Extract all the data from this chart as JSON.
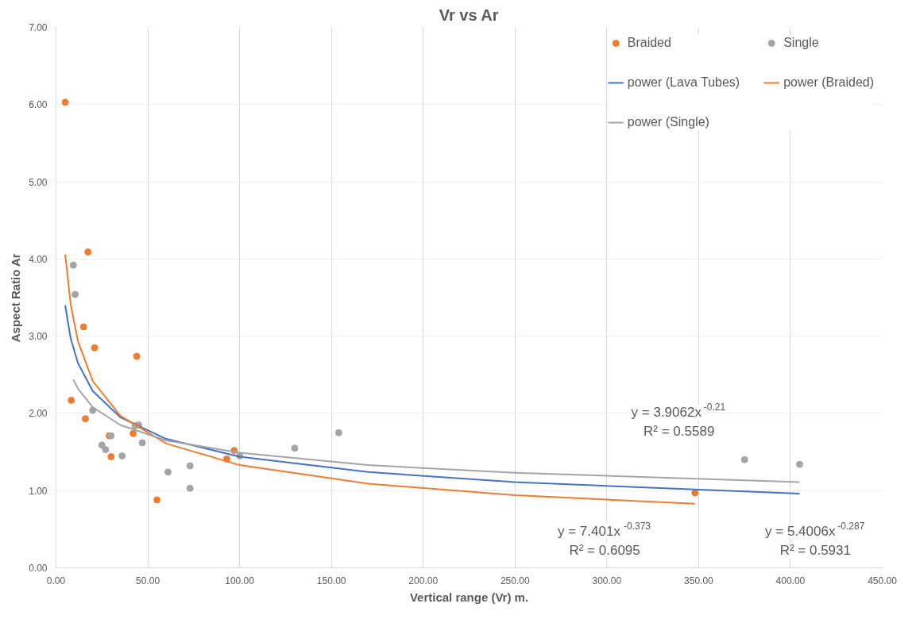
{
  "chart_data": {
    "type": "scatter",
    "title": "Vr vs Ar",
    "xlabel": "Vertical range (Vr) m.",
    "ylabel": "Aspect Ratio Ar",
    "xlim": [
      0,
      450
    ],
    "ylim": [
      0,
      7
    ],
    "xticks": [
      {
        "value": 0,
        "label": "0.00"
      },
      {
        "value": 50,
        "label": "50.00"
      },
      {
        "value": 100,
        "label": "100.00"
      },
      {
        "value": 150,
        "label": "150.00"
      },
      {
        "value": 200,
        "label": "200.00"
      },
      {
        "value": 250,
        "label": "250.00"
      },
      {
        "value": 300,
        "label": "300.00"
      },
      {
        "value": 350,
        "label": "350.00"
      },
      {
        "value": 400,
        "label": "400.00"
      },
      {
        "value": 450,
        "label": "450.00"
      }
    ],
    "yticks": [
      {
        "value": 0,
        "label": "0.00"
      },
      {
        "value": 1,
        "label": "1.00"
      },
      {
        "value": 2,
        "label": "2.00"
      },
      {
        "value": 3,
        "label": "3.00"
      },
      {
        "value": 4,
        "label": "4.00"
      },
      {
        "value": 5,
        "label": "5.00"
      },
      {
        "value": 6,
        "label": "6.00"
      },
      {
        "value": 7,
        "label": "7.00"
      }
    ],
    "grid": true,
    "legend": "top right",
    "marker": "circle",
    "series": [
      {
        "name": "Braided",
        "color": "#ed7d31",
        "x": [
          5,
          8.3,
          17.4,
          15,
          21,
          16,
          29,
          30,
          44,
          42,
          55,
          93,
          97,
          348
        ],
        "values": [
          6.03,
          2.17,
          4.09,
          3.12,
          2.85,
          1.93,
          1.71,
          1.44,
          2.74,
          1.74,
          0.88,
          1.41,
          1.52,
          0.97
        ]
      },
      {
        "name": "Single",
        "color": "#a5a5a5",
        "x": [
          9.4,
          10.4,
          20,
          25,
          27,
          30,
          36,
          43,
          45,
          47,
          61,
          73,
          73,
          100,
          130,
          154,
          375,
          405
        ],
        "values": [
          3.92,
          3.54,
          2.04,
          1.59,
          1.53,
          1.71,
          1.45,
          1.84,
          1.85,
          1.62,
          1.24,
          1.32,
          1.03,
          1.45,
          1.55,
          1.75,
          1.4,
          1.34
        ]
      },
      {
        "name": "power (Lava Tubes)",
        "type": "line",
        "marker": "none",
        "color": "#4472c4",
        "x": [
          5,
          8,
          12,
          20,
          35,
          60,
          100,
          170,
          250,
          405
        ],
        "values": [
          3.4,
          2.97,
          2.65,
          2.29,
          1.95,
          1.67,
          1.44,
          1.24,
          1.11,
          0.96
        ]
      },
      {
        "name": "power (Braided)",
        "type": "line",
        "marker": "none",
        "color": "#ed7d31",
        "x": [
          5,
          8,
          12,
          20,
          35,
          60,
          100,
          170,
          250,
          348
        ],
        "values": [
          4.06,
          3.41,
          2.93,
          2.42,
          1.97,
          1.61,
          1.33,
          1.09,
          0.94,
          0.83
        ]
      },
      {
        "name": "power (Single)",
        "type": "line",
        "marker": "none",
        "color": "#a5a5a5",
        "x": [
          9.4,
          12,
          20,
          35,
          60,
          100,
          170,
          250,
          405
        ],
        "values": [
          2.44,
          2.32,
          2.08,
          1.85,
          1.65,
          1.49,
          1.33,
          1.23,
          1.11
        ]
      }
    ],
    "annotations": [
      "y = 3.9062x$^{-0.21}$\nR² = 0.5589",
      "y = 7.401x$^{-0.373}$\nR² = 0.6095",
      "y = 5.4006x$^{-0.287}$\nR² = 0.5931"
    ]
  }
}
